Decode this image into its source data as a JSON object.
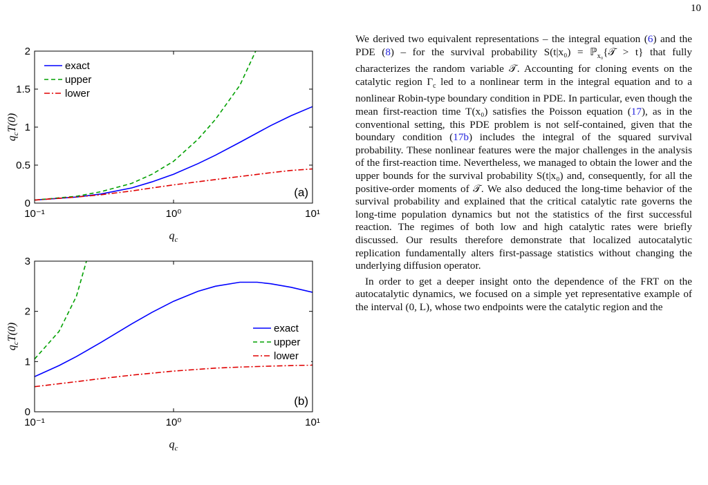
{
  "page_number": "10",
  "chart_data": [
    {
      "type": "line",
      "xlog": true,
      "panel_label": "(a)",
      "xlabel": {
        "base": "q",
        "sub": "c"
      },
      "ylabel": {
        "base": "q",
        "sub": "c",
        "rest": "T(0)"
      },
      "xlim": [
        0.1,
        10
      ],
      "xticks": [
        {
          "value": 0.1,
          "label": "10⁻¹"
        },
        {
          "value": 1,
          "label": "10⁰"
        },
        {
          "value": 10,
          "label": "10¹"
        }
      ],
      "ylim": [
        0,
        2
      ],
      "yticks": [
        0,
        0.5,
        1,
        1.5,
        2
      ],
      "legend": "upper left",
      "series": [
        {
          "name": "exact",
          "color": "#0000ff",
          "style": "solid",
          "x": [
            0.1,
            0.2,
            0.3,
            0.5,
            0.7,
            1,
            1.5,
            2,
            3,
            5,
            7,
            10
          ],
          "values": [
            0.04,
            0.08,
            0.12,
            0.2,
            0.28,
            0.38,
            0.52,
            0.63,
            0.8,
            1.02,
            1.15,
            1.27
          ]
        },
        {
          "name": "upper",
          "color": "#00a000",
          "style": "dashed",
          "x": [
            0.1,
            0.2,
            0.3,
            0.5,
            0.7,
            1,
            1.5,
            2,
            3,
            3.9
          ],
          "values": [
            0.04,
            0.09,
            0.15,
            0.26,
            0.38,
            0.55,
            0.84,
            1.1,
            1.55,
            2.0
          ]
        },
        {
          "name": "lower",
          "color": "#e00000",
          "style": "dashdot",
          "x": [
            0.1,
            0.2,
            0.3,
            0.5,
            0.7,
            1,
            2,
            3,
            5,
            7,
            10
          ],
          "values": [
            0.04,
            0.08,
            0.11,
            0.16,
            0.2,
            0.24,
            0.31,
            0.35,
            0.4,
            0.43,
            0.45
          ]
        }
      ]
    },
    {
      "type": "line",
      "xlog": true,
      "panel_label": "(b)",
      "xlabel": {
        "base": "q",
        "sub": "c"
      },
      "ylabel": {
        "base": "q",
        "sub": "c",
        "rest": "T(0)"
      },
      "xlim": [
        0.1,
        10
      ],
      "xticks": [
        {
          "value": 0.1,
          "label": "10⁻¹"
        },
        {
          "value": 1,
          "label": "10⁰"
        },
        {
          "value": 10,
          "label": "10¹"
        }
      ],
      "ylim": [
        0,
        3
      ],
      "yticks": [
        0,
        1,
        2,
        3
      ],
      "legend": "center right",
      "series": [
        {
          "name": "exact",
          "color": "#0000ff",
          "style": "solid",
          "x": [
            0.1,
            0.15,
            0.2,
            0.3,
            0.5,
            0.7,
            1,
            1.5,
            2,
            3,
            4,
            5,
            7,
            10
          ],
          "values": [
            0.7,
            0.92,
            1.1,
            1.38,
            1.75,
            1.98,
            2.2,
            2.4,
            2.5,
            2.58,
            2.58,
            2.55,
            2.48,
            2.38
          ]
        },
        {
          "name": "upper",
          "color": "#00a000",
          "style": "dashed",
          "x": [
            0.1,
            0.15,
            0.2,
            0.236
          ],
          "values": [
            1.05,
            1.6,
            2.3,
            3.0
          ]
        },
        {
          "name": "lower",
          "color": "#e00000",
          "style": "dashdot",
          "x": [
            0.1,
            0.2,
            0.3,
            0.5,
            1,
            2,
            3,
            5,
            10
          ],
          "values": [
            0.5,
            0.6,
            0.66,
            0.73,
            0.81,
            0.87,
            0.89,
            0.91,
            0.93
          ]
        }
      ]
    }
  ],
  "text": {
    "paragraphs": [
      [
        "We derived two equivalent representations – the integral equation (",
        {
          "ref": "6"
        },
        ") and the PDE (",
        {
          "ref": "8"
        },
        ") – for the survival probability S(t|x₀) = ℙ",
        {
          "sub": "x₀"
        },
        "{𝒯 > t} that fully characterizes the random variable 𝒯. Accounting for cloning events on the catalytic region Γ",
        {
          "sub": "c"
        },
        " led to a nonlinear term in the integral equation and to a nonlinear Robin-type boundary condition in PDE. In particular, even though the mean first-reaction time T(x₀) satisfies the Poisson equation (",
        {
          "ref": "17"
        },
        "), as in the conventional setting, this PDE problem is not self-contained, given that the boundary condition (",
        {
          "ref": "17b"
        },
        ") includes the integral of the squared survival probability. These nonlinear features were the major challenges in the analysis of the first-reaction time. Nevertheless, we managed to obtain the lower and the upper bounds for the survival probability S(t|x₀) and, consequently, for all the positive-order moments of 𝒯. We also deduced the long-time behavior of the survival probability and explained that the critical catalytic rate governs the long-time population dynamics but not the statistics of the first successful reaction. The regimes of both low and high catalytic rates were briefly discussed. Our results therefore demonstrate that localized autocatalytic replication fundamentally alters first-passage statistics without changing the underlying diffusion operator."
      ],
      [
        "In order to get a deeper insight onto the dependence of the FRT on the autocatalytic dynamics, we focused on a simple yet representative example of the interval (0, L), whose two endpoints were the catalytic region and the"
      ]
    ]
  }
}
